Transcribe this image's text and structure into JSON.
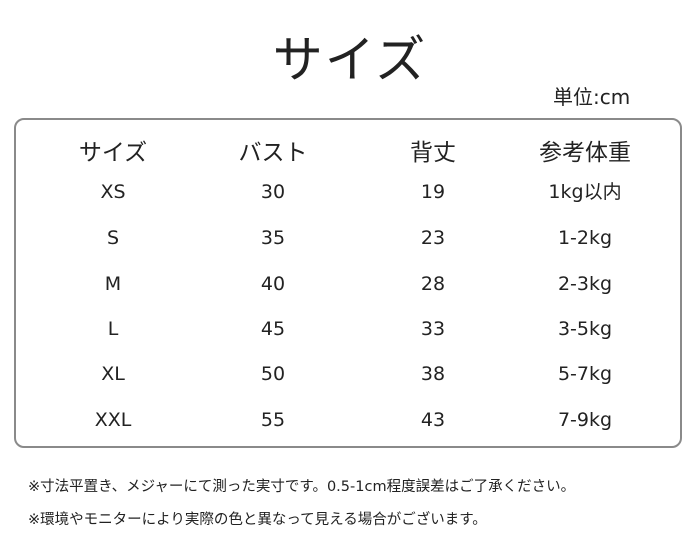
{
  "title": "サイズ",
  "unit": "単位:cm",
  "table": {
    "headers": [
      "サイズ",
      "バスト",
      "背丈",
      "参考体重"
    ],
    "rows": [
      [
        "XS",
        "30",
        "19",
        "1kg以内"
      ],
      [
        "S",
        "35",
        "23",
        "1-2kg"
      ],
      [
        "M",
        "40",
        "28",
        "2-3kg"
      ],
      [
        "L",
        "45",
        "33",
        "3-5kg"
      ],
      [
        "XL",
        "50",
        "38",
        "5-7kg"
      ],
      [
        "XXL",
        "55",
        "43",
        "7-9kg"
      ]
    ]
  },
  "notes": [
    "※寸法平置き、メジャーにて測った実寸です。0.5-1cm程度誤差はご了承ください。",
    "※環境やモニターにより実際の色と異なって見える場合がございます。"
  ]
}
